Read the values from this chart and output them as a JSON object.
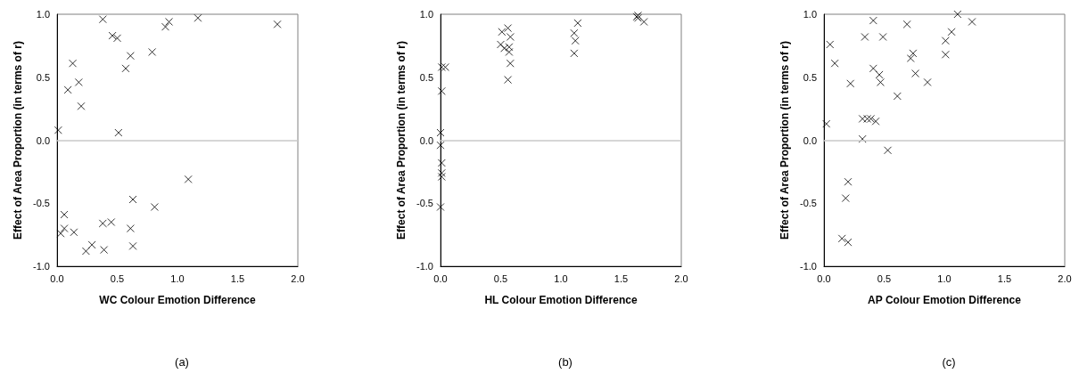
{
  "chart_data": [
    {
      "type": "scatter",
      "xlabel": "WC Colour Emotion Difference",
      "ylabel": "Effect of Area Proportion (in terms of r)",
      "annotations": [
        "(a)"
      ],
      "marker": "cross",
      "grid": false,
      "xlim": [
        0,
        2
      ],
      "xticks": [
        {
          "value": 0,
          "label": "0.0"
        },
        {
          "value": 0.5,
          "label": "0.5"
        },
        {
          "value": 1,
          "label": "1.0"
        },
        {
          "value": 1.5,
          "label": "1.5"
        },
        {
          "value": 2,
          "label": "2.0"
        }
      ],
      "ylim": [
        -1,
        1
      ],
      "yticks": [
        {
          "value": -1,
          "label": "-1.0"
        },
        {
          "value": -0.5,
          "label": "-0.5"
        },
        {
          "value": 0,
          "label": "0.0"
        },
        {
          "value": 0.5,
          "label": "0.5"
        },
        {
          "value": 1,
          "label": "1.0"
        }
      ],
      "ref_lines": [
        {
          "axis": "y",
          "value": 0,
          "color": "#c8c8c8"
        }
      ],
      "series": [
        {
          "color": "#000000",
          "x": [
            0.01,
            0.38,
            0.46,
            0.5,
            0.9,
            0.93,
            1.17,
            1.83,
            0.13,
            0.09,
            0.18,
            0.2,
            0.61,
            0.57,
            0.79,
            0.51,
            1.09,
            0.63,
            0.81,
            0.06,
            0.03,
            0.06,
            0.14,
            0.38,
            0.45,
            0.61,
            0.63,
            0.39,
            0.24,
            0.29
          ],
          "values": [
            0.08,
            0.96,
            0.83,
            0.81,
            0.9,
            0.94,
            0.97,
            0.92,
            0.61,
            0.4,
            0.46,
            0.27,
            0.67,
            0.57,
            0.7,
            0.06,
            -0.31,
            -0.47,
            -0.53,
            -0.59,
            -0.74,
            -0.7,
            -0.73,
            -0.66,
            -0.65,
            -0.7,
            -0.84,
            -0.87,
            -0.88,
            -0.83
          ]
        }
      ]
    },
    {
      "type": "scatter",
      "xlabel": "HL Colour Emotion Difference",
      "ylabel": "Effect of Area Proportion (in terms of r)",
      "annotations": [
        "(b)"
      ],
      "marker": "cross",
      "grid": false,
      "xlim": [
        0,
        2
      ],
      "xticks": [
        {
          "value": 0,
          "label": "0.0"
        },
        {
          "value": 0.5,
          "label": "0.5"
        },
        {
          "value": 1,
          "label": "1.0"
        },
        {
          "value": 1.5,
          "label": "1.5"
        },
        {
          "value": 2,
          "label": "2.0"
        }
      ],
      "ylim": [
        -1,
        1
      ],
      "yticks": [
        {
          "value": -1,
          "label": "-1.0"
        },
        {
          "value": -0.5,
          "label": "-0.5"
        },
        {
          "value": 0,
          "label": "0.0"
        },
        {
          "value": 0.5,
          "label": "0.5"
        },
        {
          "value": 1,
          "label": "1.0"
        }
      ],
      "ref_lines": [
        {
          "axis": "y",
          "value": 0,
          "color": "#c8c8c8"
        }
      ],
      "series": [
        {
          "color": "#000000",
          "x": [
            0.01,
            0.04,
            0.01,
            0.0,
            0.0,
            0.01,
            0.01,
            0.01,
            0.0,
            0.51,
            0.56,
            0.58,
            0.5,
            0.53,
            0.57,
            0.57,
            0.58,
            0.56,
            1.11,
            1.12,
            1.14,
            1.11,
            1.63,
            1.64,
            1.69,
            1.64
          ],
          "values": [
            0.58,
            0.58,
            0.39,
            0.06,
            -0.04,
            -0.18,
            -0.26,
            -0.29,
            -0.53,
            0.86,
            0.89,
            0.82,
            0.76,
            0.73,
            0.74,
            0.7,
            0.61,
            0.48,
            0.85,
            0.79,
            0.93,
            0.69,
            0.98,
            0.97,
            0.94,
            0.99
          ]
        }
      ]
    },
    {
      "type": "scatter",
      "xlabel": "AP Colour Emotion Difference",
      "ylabel": "Effect of Area Proportion (in terms of r)",
      "annotations": [
        "(c)"
      ],
      "marker": "cross",
      "grid": false,
      "xlim": [
        0,
        2
      ],
      "xticks": [
        {
          "value": 0,
          "label": "0.0"
        },
        {
          "value": 0.5,
          "label": "0.5"
        },
        {
          "value": 1,
          "label": "1.0"
        },
        {
          "value": 1.5,
          "label": "1.5"
        },
        {
          "value": 2,
          "label": "2.0"
        }
      ],
      "ylim": [
        -1,
        1
      ],
      "yticks": [
        {
          "value": -1,
          "label": "-1.0"
        },
        {
          "value": -0.5,
          "label": "-0.5"
        },
        {
          "value": 0,
          "label": "0.0"
        },
        {
          "value": 0.5,
          "label": "0.5"
        },
        {
          "value": 1,
          "label": "1.0"
        }
      ],
      "ref_lines": [
        {
          "axis": "y",
          "value": 0,
          "color": "#c8c8c8"
        }
      ],
      "series": [
        {
          "color": "#000000",
          "x": [
            0.02,
            0.05,
            0.09,
            0.22,
            0.2,
            0.18,
            0.15,
            0.2,
            0.32,
            0.36,
            0.39,
            0.43,
            0.32,
            0.34,
            0.41,
            0.49,
            0.41,
            0.46,
            0.47,
            0.53,
            0.61,
            0.69,
            0.72,
            0.74,
            0.76,
            0.86,
            1.01,
            1.01,
            1.06,
            1.11,
            1.23
          ],
          "values": [
            0.13,
            0.76,
            0.61,
            0.45,
            -0.33,
            -0.46,
            -0.78,
            -0.81,
            0.17,
            0.17,
            0.17,
            0.15,
            0.01,
            0.82,
            0.95,
            0.82,
            0.57,
            0.52,
            0.46,
            -0.08,
            0.35,
            0.92,
            0.65,
            0.69,
            0.53,
            0.46,
            0.79,
            0.68,
            0.86,
            1.0,
            0.94
          ]
        }
      ]
    }
  ]
}
